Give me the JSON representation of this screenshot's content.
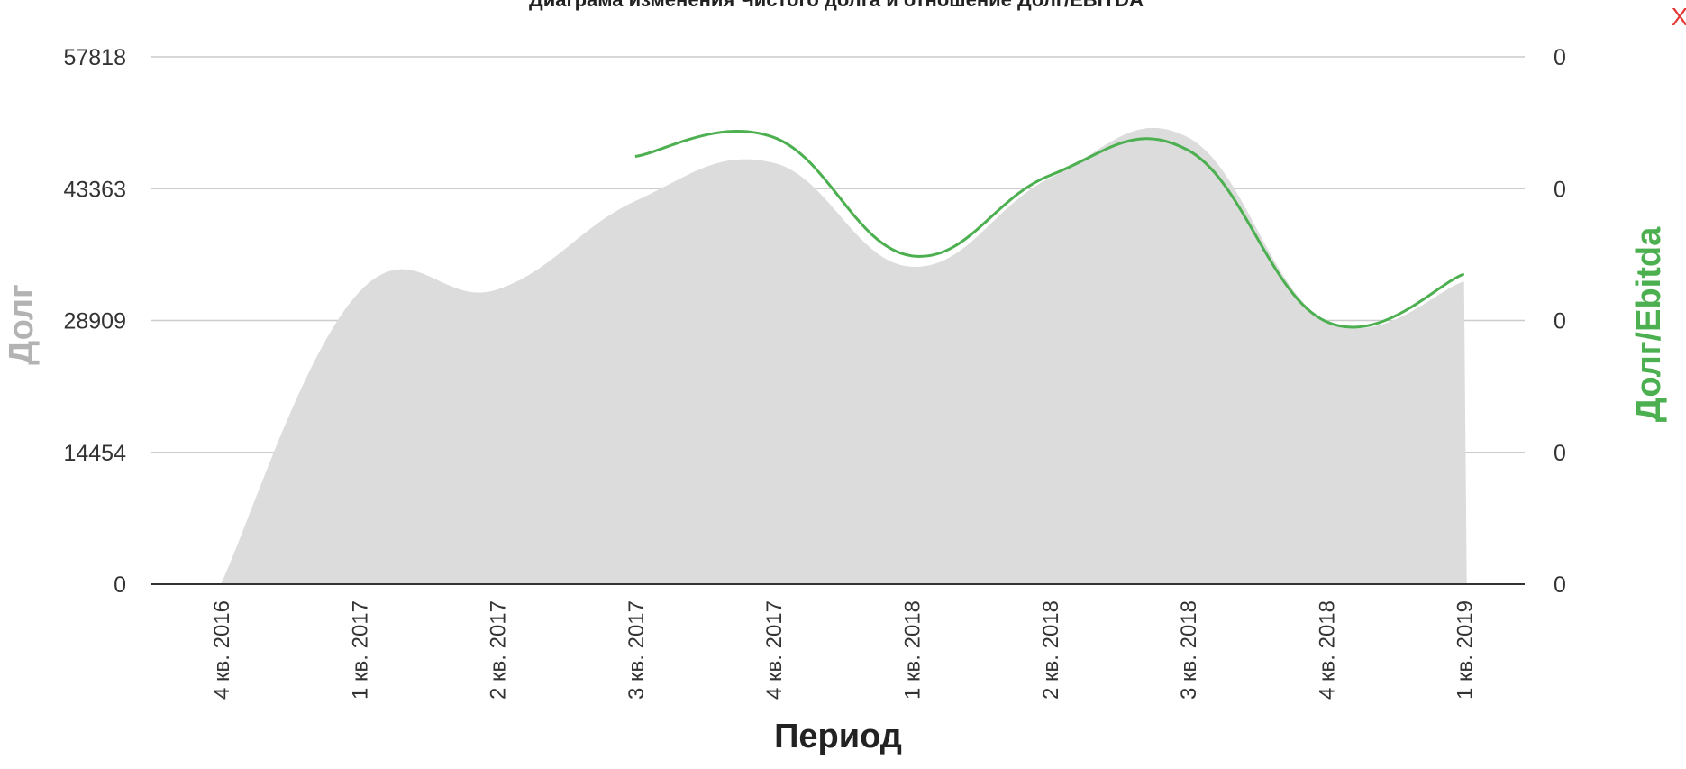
{
  "chart_data": {
    "type": "area",
    "title": "Диаграма изменения Чистого долга и отношение Долг/EBITDA",
    "xlabel": "Период",
    "ylabel": "Долг",
    "y2label": "Долг/Ebitda",
    "categories": [
      "4 кв. 2016",
      "1 кв. 2017",
      "2 кв. 2017",
      "3 кв. 2017",
      "4 кв. 2017",
      "1 кв. 2018",
      "2 кв. 2018",
      "3 кв. 2018",
      "4 кв. 2018",
      "1 кв. 2019"
    ],
    "yticks": [
      "0",
      "14454",
      "28909",
      "43363",
      "57818"
    ],
    "y2ticks": [
      "0",
      "0",
      "0",
      "0",
      "0"
    ],
    "ylim": [
      0,
      57818
    ],
    "grid": true,
    "series": [
      {
        "type": "area",
        "axis": "left",
        "color": "#dcdcdc",
        "values": [
          0,
          32000,
          32300,
          42000,
          46200,
          34800,
          44500,
          49000,
          28900,
          33200
        ]
      },
      {
        "type": "line",
        "axis": "right",
        "color": "#4caf50",
        "values": [
          null,
          null,
          null,
          46900,
          49000,
          36000,
          44800,
          47600,
          28800,
          34000
        ]
      }
    ]
  },
  "ui": {
    "close_label": "X"
  }
}
